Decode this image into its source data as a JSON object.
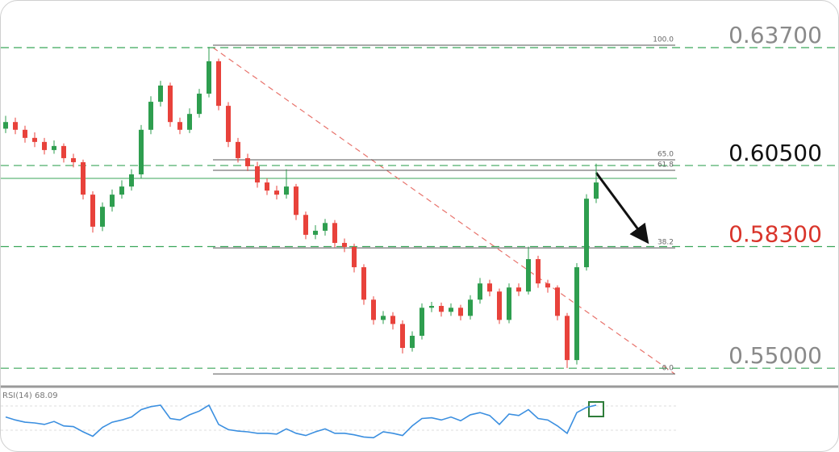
{
  "chart_data": {
    "type": "candlestick",
    "ylim": [
      0.545,
      0.6497
    ],
    "yticks": [
      {
        "value": 0.637,
        "label": "0.63700"
      },
      {
        "value": 0.605,
        "label": "0.60500"
      },
      {
        "value": 0.583,
        "label": "0.58300"
      },
      {
        "value": 0.55,
        "label": "0.55000"
      }
    ],
    "ytick_colors": [
      "#8a8a8a",
      "#111111",
      "#d9352b",
      "#8a8a8a"
    ],
    "grid": true,
    "grid_color": "#3aa65a",
    "up_color": "#2e9e4f",
    "down_color": "#e8423b",
    "fib_levels": [
      {
        "value": 0.63766,
        "label": "100.0"
      },
      {
        "value": 0.60654,
        "label": "65.0"
      },
      {
        "value": 0.60369,
        "label": "61.8"
      },
      {
        "value": 0.58265,
        "label": "38.2"
      },
      {
        "value": 0.54846,
        "label": "0.0"
      }
    ],
    "open": [
      0.615,
      0.6168,
      0.6147,
      0.6125,
      0.6114,
      0.6092,
      0.6103,
      0.607,
      0.6059,
      0.5971,
      0.5884,
      0.5938,
      0.5971,
      0.5993,
      0.6026,
      0.6147,
      0.6223,
      0.6267,
      0.6168,
      0.6147,
      0.619,
      0.6245,
      0.6333,
      0.6212,
      0.6114,
      0.607,
      0.6048,
      0.6004,
      0.5982,
      0.5971,
      0.5993,
      0.5916,
      0.5862,
      0.5873,
      0.5894,
      0.584,
      0.5829,
      0.5774,
      0.5686,
      0.5631,
      0.5642,
      0.562,
      0.5555,
      0.5588,
      0.5664,
      0.5669,
      0.5653,
      0.5664,
      0.5642,
      0.5686,
      0.573,
      0.5708,
      0.5631,
      0.5719,
      0.5708,
      0.5796,
      0.573,
      0.5719,
      0.5642,
      0.5522,
      0.5774,
      0.596
    ],
    "high": [
      0.6185,
      0.618,
      0.6158,
      0.614,
      0.6125,
      0.6118,
      0.611,
      0.6082,
      0.6066,
      0.598,
      0.595,
      0.5985,
      0.601,
      0.604,
      0.616,
      0.6238,
      0.628,
      0.6275,
      0.618,
      0.6205,
      0.6258,
      0.6372,
      0.634,
      0.6222,
      0.6125,
      0.6082,
      0.606,
      0.6015,
      0.5995,
      0.604,
      0.6,
      0.5925,
      0.5888,
      0.5905,
      0.5902,
      0.5852,
      0.5838,
      0.5782,
      0.5695,
      0.5655,
      0.5652,
      0.563,
      0.56,
      0.5676,
      0.568,
      0.5678,
      0.5676,
      0.5672,
      0.5698,
      0.5745,
      0.574,
      0.5716,
      0.573,
      0.573,
      0.583,
      0.5805,
      0.574,
      0.5725,
      0.565,
      0.5785,
      0.5972,
      0.6055
    ],
    "low": [
      0.6138,
      0.6135,
      0.6112,
      0.61,
      0.608,
      0.6082,
      0.6058,
      0.6045,
      0.5958,
      0.5868,
      0.5872,
      0.5925,
      0.596,
      0.5982,
      0.6015,
      0.6135,
      0.621,
      0.6155,
      0.6135,
      0.6138,
      0.618,
      0.6235,
      0.62,
      0.61,
      0.6058,
      0.6035,
      0.599,
      0.597,
      0.5958,
      0.596,
      0.5902,
      0.585,
      0.585,
      0.586,
      0.5828,
      0.5815,
      0.576,
      0.5672,
      0.5618,
      0.562,
      0.5605,
      0.554,
      0.5545,
      0.5578,
      0.5652,
      0.564,
      0.5642,
      0.563,
      0.5632,
      0.5675,
      0.5695,
      0.562,
      0.5622,
      0.5696,
      0.57,
      0.5718,
      0.5705,
      0.563,
      0.55,
      0.551,
      0.5765,
      0.5948
    ],
    "close": [
      0.6168,
      0.6147,
      0.6125,
      0.6114,
      0.6092,
      0.6103,
      0.607,
      0.6059,
      0.5971,
      0.5884,
      0.5938,
      0.5971,
      0.5993,
      0.6026,
      0.6147,
      0.6223,
      0.6267,
      0.6168,
      0.6147,
      0.619,
      0.6245,
      0.6333,
      0.6212,
      0.6114,
      0.607,
      0.6048,
      0.6004,
      0.5982,
      0.5971,
      0.5993,
      0.5916,
      0.5862,
      0.5873,
      0.5894,
      0.584,
      0.5829,
      0.5774,
      0.5686,
      0.5631,
      0.5642,
      0.562,
      0.5555,
      0.5588,
      0.5664,
      0.5669,
      0.5653,
      0.5664,
      0.5642,
      0.5686,
      0.573,
      0.5708,
      0.5631,
      0.5719,
      0.5708,
      0.5796,
      0.573,
      0.5719,
      0.5642,
      0.5522,
      0.5774,
      0.596,
      0.6004
    ],
    "rsi": {
      "label": "RSI(14) 68.09",
      "color": "#3b8fe0",
      "ylim": [
        20,
        80
      ],
      "values": [
        52,
        48,
        45,
        44,
        42,
        46,
        40,
        39,
        32,
        26,
        38,
        45,
        48,
        52,
        62,
        66,
        68,
        50,
        48,
        55,
        60,
        68,
        42,
        35,
        33,
        32,
        30,
        30,
        29,
        36,
        30,
        27,
        32,
        36,
        30,
        30,
        28,
        25,
        24,
        32,
        30,
        27,
        40,
        50,
        51,
        48,
        52,
        47,
        55,
        58,
        54,
        42,
        56,
        54,
        62,
        50,
        48,
        40,
        30,
        58,
        65,
        68.09
      ]
    }
  }
}
